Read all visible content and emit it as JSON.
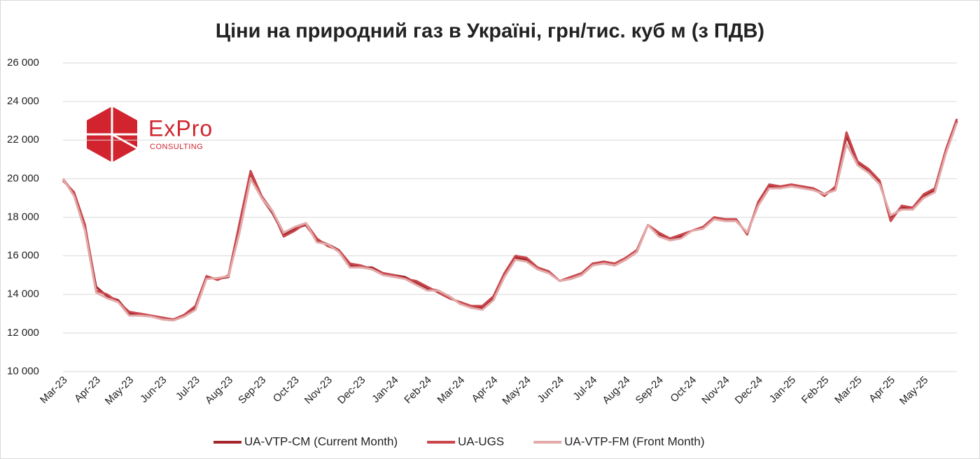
{
  "logo": [
    "ExPro",
    "CONSULTING"
  ],
  "chart_data": {
    "type": "line",
    "title": "Ціни на природний газ в Україні, грн/тис. куб м (з ПДВ)",
    "categories": [
      "Mar-23",
      null,
      null,
      "Apr-23",
      null,
      null,
      "May-23",
      null,
      null,
      "Jun-23",
      null,
      null,
      "Jul-23",
      null,
      null,
      "Aug-23",
      null,
      null,
      "Sep-23",
      null,
      null,
      "Oct-23",
      null,
      null,
      "Nov-23",
      null,
      null,
      "Dec-23",
      null,
      null,
      "Jan-24",
      null,
      null,
      "Feb-24",
      null,
      null,
      "Mar-24",
      null,
      null,
      "Apr-24",
      null,
      null,
      "May-24",
      null,
      null,
      "Jun-24",
      null,
      null,
      "Jul-24",
      null,
      null,
      "Aug-24",
      null,
      null,
      "Sep-24",
      null,
      null,
      "Oct-24",
      null,
      null,
      "Nov-24",
      null,
      null,
      "Dec-24",
      null,
      null,
      "Jan-25",
      null,
      null,
      "Feb-25",
      null,
      null,
      "Mar-25",
      null,
      null,
      "Apr-25",
      null,
      null,
      "May-25",
      null,
      null,
      null
    ],
    "series": [
      {
        "name": "UA-VTP-CM (Current Month)",
        "color": "#a3262c",
        "values": [
          20000,
          19200,
          17500,
          14400,
          13900,
          13700,
          13000,
          13000,
          12900,
          12750,
          12700,
          12900,
          13300,
          14900,
          14800,
          14900,
          17500,
          20300,
          19000,
          18200,
          17100,
          17400,
          17600,
          16800,
          16600,
          16300,
          15500,
          15400,
          15400,
          15100,
          15000,
          14900,
          14600,
          14300,
          14200,
          13900,
          13500,
          13400,
          13300,
          13800,
          15000,
          15900,
          15800,
          15300,
          15200,
          14700,
          14800,
          15000,
          15600,
          15600,
          15500,
          15800,
          16200,
          17600,
          17100,
          16900,
          17000,
          17300,
          17500,
          17900,
          17900,
          17800,
          17200,
          18700,
          19600,
          19600,
          19600,
          19600,
          19500,
          19200,
          19500,
          22200,
          20800,
          20400,
          19800,
          18000,
          18500,
          18400,
          19100,
          19400,
          21400,
          23000
        ]
      },
      {
        "name": "UA-UGS",
        "color": "#c9474c",
        "values": [
          19900,
          19300,
          17600,
          14200,
          14000,
          13600,
          13100,
          13000,
          12900,
          12800,
          12700,
          12950,
          13400,
          14950,
          14750,
          15000,
          17700,
          20400,
          19100,
          18300,
          17000,
          17300,
          17700,
          16900,
          16500,
          16300,
          15600,
          15500,
          15300,
          15100,
          15000,
          14800,
          14700,
          14400,
          14100,
          13800,
          13600,
          13400,
          13400,
          13900,
          15100,
          16000,
          15900,
          15400,
          15200,
          14700,
          14900,
          15100,
          15600,
          15700,
          15600,
          15900,
          16300,
          17600,
          17200,
          16900,
          17100,
          17300,
          17500,
          18000,
          17900,
          17900,
          17100,
          18800,
          19700,
          19600,
          19700,
          19600,
          19500,
          19100,
          19600,
          22400,
          20900,
          20500,
          19900,
          17800,
          18600,
          18500,
          19200,
          19500,
          21500,
          23100
        ]
      },
      {
        "name": "UA-VTP-FM (Front Month)",
        "color": "#e3aaaa",
        "values": [
          20000,
          19100,
          17300,
          14100,
          13800,
          13600,
          12900,
          12900,
          12850,
          12700,
          12650,
          12850,
          13200,
          14800,
          14850,
          14950,
          17200,
          20000,
          19000,
          18300,
          17200,
          17500,
          17700,
          16700,
          16600,
          16200,
          15400,
          15400,
          15300,
          15000,
          14900,
          14800,
          14500,
          14200,
          14200,
          13900,
          13500,
          13300,
          13200,
          13700,
          14900,
          15800,
          15700,
          15300,
          15100,
          14700,
          14800,
          15000,
          15500,
          15600,
          15500,
          15800,
          16200,
          17600,
          17000,
          16800,
          16900,
          17300,
          17400,
          17900,
          17800,
          17800,
          17200,
          18600,
          19500,
          19500,
          19600,
          19500,
          19400,
          19200,
          19400,
          21800,
          20700,
          20300,
          19700,
          18100,
          18400,
          18400,
          19000,
          19300,
          21300,
          22900
        ]
      }
    ],
    "ylim": [
      10000,
      26000
    ],
    "yticks": [
      {
        "value": 10000,
        "label": "10 000"
      },
      {
        "value": 12000,
        "label": "12 000"
      },
      {
        "value": 14000,
        "label": "14 000"
      },
      {
        "value": 16000,
        "label": "16 000"
      },
      {
        "value": 18000,
        "label": "18 000"
      },
      {
        "value": 20000,
        "label": "20 000"
      },
      {
        "value": 22000,
        "label": "22 000"
      },
      {
        "value": 24000,
        "label": "24 000"
      },
      {
        "value": 26000,
        "label": "26 000"
      }
    ],
    "grid": true,
    "legend": "bottom"
  }
}
